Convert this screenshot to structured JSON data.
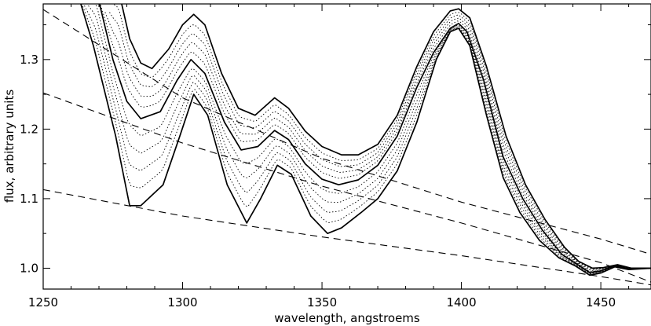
{
  "chart_data": {
    "type": "line",
    "title": "",
    "xlabel": "wavelength, angstroems",
    "ylabel": "flux, arbitrary units",
    "xlim": [
      1250,
      1468
    ],
    "ylim": [
      0.97,
      1.38
    ],
    "xticks": [
      1250,
      1300,
      1350,
      1400,
      1450
    ],
    "xtick_labels": [
      "1250",
      "1300",
      "1350",
      "1400",
      "1450"
    ],
    "yticks": [
      1.0,
      1.1,
      1.2,
      1.3
    ],
    "ytick_labels": [
      "1.0",
      "1.1",
      "1.2",
      "1.3"
    ],
    "grid": false,
    "legend": "none",
    "series": [
      {
        "style": "solid",
        "points": [
          [
            1262,
            1.4
          ],
          [
            1268,
            1.32
          ],
          [
            1276,
            1.19
          ],
          [
            1281,
            1.09
          ],
          [
            1285,
            1.09
          ],
          [
            1293,
            1.12
          ],
          [
            1299,
            1.19
          ],
          [
            1304,
            1.25
          ],
          [
            1309,
            1.22
          ],
          [
            1316,
            1.12
          ],
          [
            1323,
            1.065
          ],
          [
            1328,
            1.1
          ],
          [
            1334,
            1.148
          ],
          [
            1339,
            1.135
          ],
          [
            1346,
            1.075
          ],
          [
            1352,
            1.05
          ],
          [
            1357,
            1.058
          ],
          [
            1364,
            1.08
          ],
          [
            1370,
            1.1
          ],
          [
            1377,
            1.14
          ],
          [
            1384,
            1.21
          ],
          [
            1391,
            1.3
          ],
          [
            1396,
            1.34
          ],
          [
            1399,
            1.345
          ],
          [
            1403,
            1.32
          ],
          [
            1409,
            1.22
          ],
          [
            1415,
            1.13
          ],
          [
            1421,
            1.08
          ],
          [
            1428,
            1.04
          ],
          [
            1435,
            1.015
          ],
          [
            1441,
            1.003
          ],
          [
            1446,
            0.99
          ],
          [
            1450,
            0.993
          ],
          [
            1455,
            1.002
          ],
          [
            1460,
            0.998
          ],
          [
            1468,
            1.0
          ]
        ]
      },
      {
        "style": "solid",
        "points": [
          [
            1269,
            1.4
          ],
          [
            1275,
            1.3
          ],
          [
            1280,
            1.24
          ],
          [
            1285,
            1.215
          ],
          [
            1292,
            1.225
          ],
          [
            1298,
            1.27
          ],
          [
            1303,
            1.3
          ],
          [
            1308,
            1.28
          ],
          [
            1315,
            1.21
          ],
          [
            1321,
            1.17
          ],
          [
            1327,
            1.175
          ],
          [
            1333,
            1.198
          ],
          [
            1338,
            1.185
          ],
          [
            1344,
            1.15
          ],
          [
            1350,
            1.128
          ],
          [
            1356,
            1.12
          ],
          [
            1363,
            1.127
          ],
          [
            1370,
            1.148
          ],
          [
            1377,
            1.19
          ],
          [
            1384,
            1.26
          ],
          [
            1390,
            1.31
          ],
          [
            1396,
            1.345
          ],
          [
            1399,
            1.352
          ],
          [
            1402,
            1.34
          ],
          [
            1408,
            1.27
          ],
          [
            1415,
            1.16
          ],
          [
            1422,
            1.1
          ],
          [
            1429,
            1.055
          ],
          [
            1436,
            1.02
          ],
          [
            1441,
            1.007
          ],
          [
            1446,
            0.994
          ],
          [
            1450,
            0.996
          ],
          [
            1455,
            1.004
          ],
          [
            1460,
            0.999
          ],
          [
            1468,
            1.0
          ]
        ]
      },
      {
        "style": "solid",
        "points": [
          [
            1277,
            1.4
          ],
          [
            1281,
            1.33
          ],
          [
            1285,
            1.295
          ],
          [
            1289,
            1.287
          ],
          [
            1295,
            1.315
          ],
          [
            1300,
            1.35
          ],
          [
            1304,
            1.365
          ],
          [
            1308,
            1.35
          ],
          [
            1314,
            1.28
          ],
          [
            1320,
            1.23
          ],
          [
            1326,
            1.22
          ],
          [
            1333,
            1.245
          ],
          [
            1338,
            1.23
          ],
          [
            1344,
            1.197
          ],
          [
            1350,
            1.175
          ],
          [
            1357,
            1.163
          ],
          [
            1363,
            1.163
          ],
          [
            1370,
            1.178
          ],
          [
            1377,
            1.22
          ],
          [
            1384,
            1.29
          ],
          [
            1390,
            1.34
          ],
          [
            1396,
            1.37
          ],
          [
            1399,
            1.373
          ],
          [
            1403,
            1.36
          ],
          [
            1409,
            1.29
          ],
          [
            1416,
            1.19
          ],
          [
            1423,
            1.12
          ],
          [
            1430,
            1.07
          ],
          [
            1437,
            1.03
          ],
          [
            1442,
            1.01
          ],
          [
            1447,
            1.0
          ],
          [
            1451,
            1.001
          ],
          [
            1456,
            1.005
          ],
          [
            1461,
            1.0
          ],
          [
            1468,
            1.0
          ]
        ]
      },
      {
        "style": "dashed",
        "points": [
          [
            1250,
            1.372
          ],
          [
            1300,
            1.245
          ],
          [
            1350,
            1.158
          ],
          [
            1400,
            1.095
          ],
          [
            1450,
            1.042
          ],
          [
            1468,
            1.02
          ]
        ]
      },
      {
        "style": "dashed",
        "points": [
          [
            1250,
            1.252
          ],
          [
            1300,
            1.18
          ],
          [
            1350,
            1.118
          ],
          [
            1400,
            1.065
          ],
          [
            1450,
            1.008
          ],
          [
            1468,
            0.98
          ]
        ]
      },
      {
        "style": "dashed",
        "points": [
          [
            1250,
            1.113
          ],
          [
            1300,
            1.075
          ],
          [
            1350,
            1.045
          ],
          [
            1400,
            1.018
          ],
          [
            1450,
            0.988
          ],
          [
            1468,
            0.976
          ]
        ]
      }
    ]
  }
}
